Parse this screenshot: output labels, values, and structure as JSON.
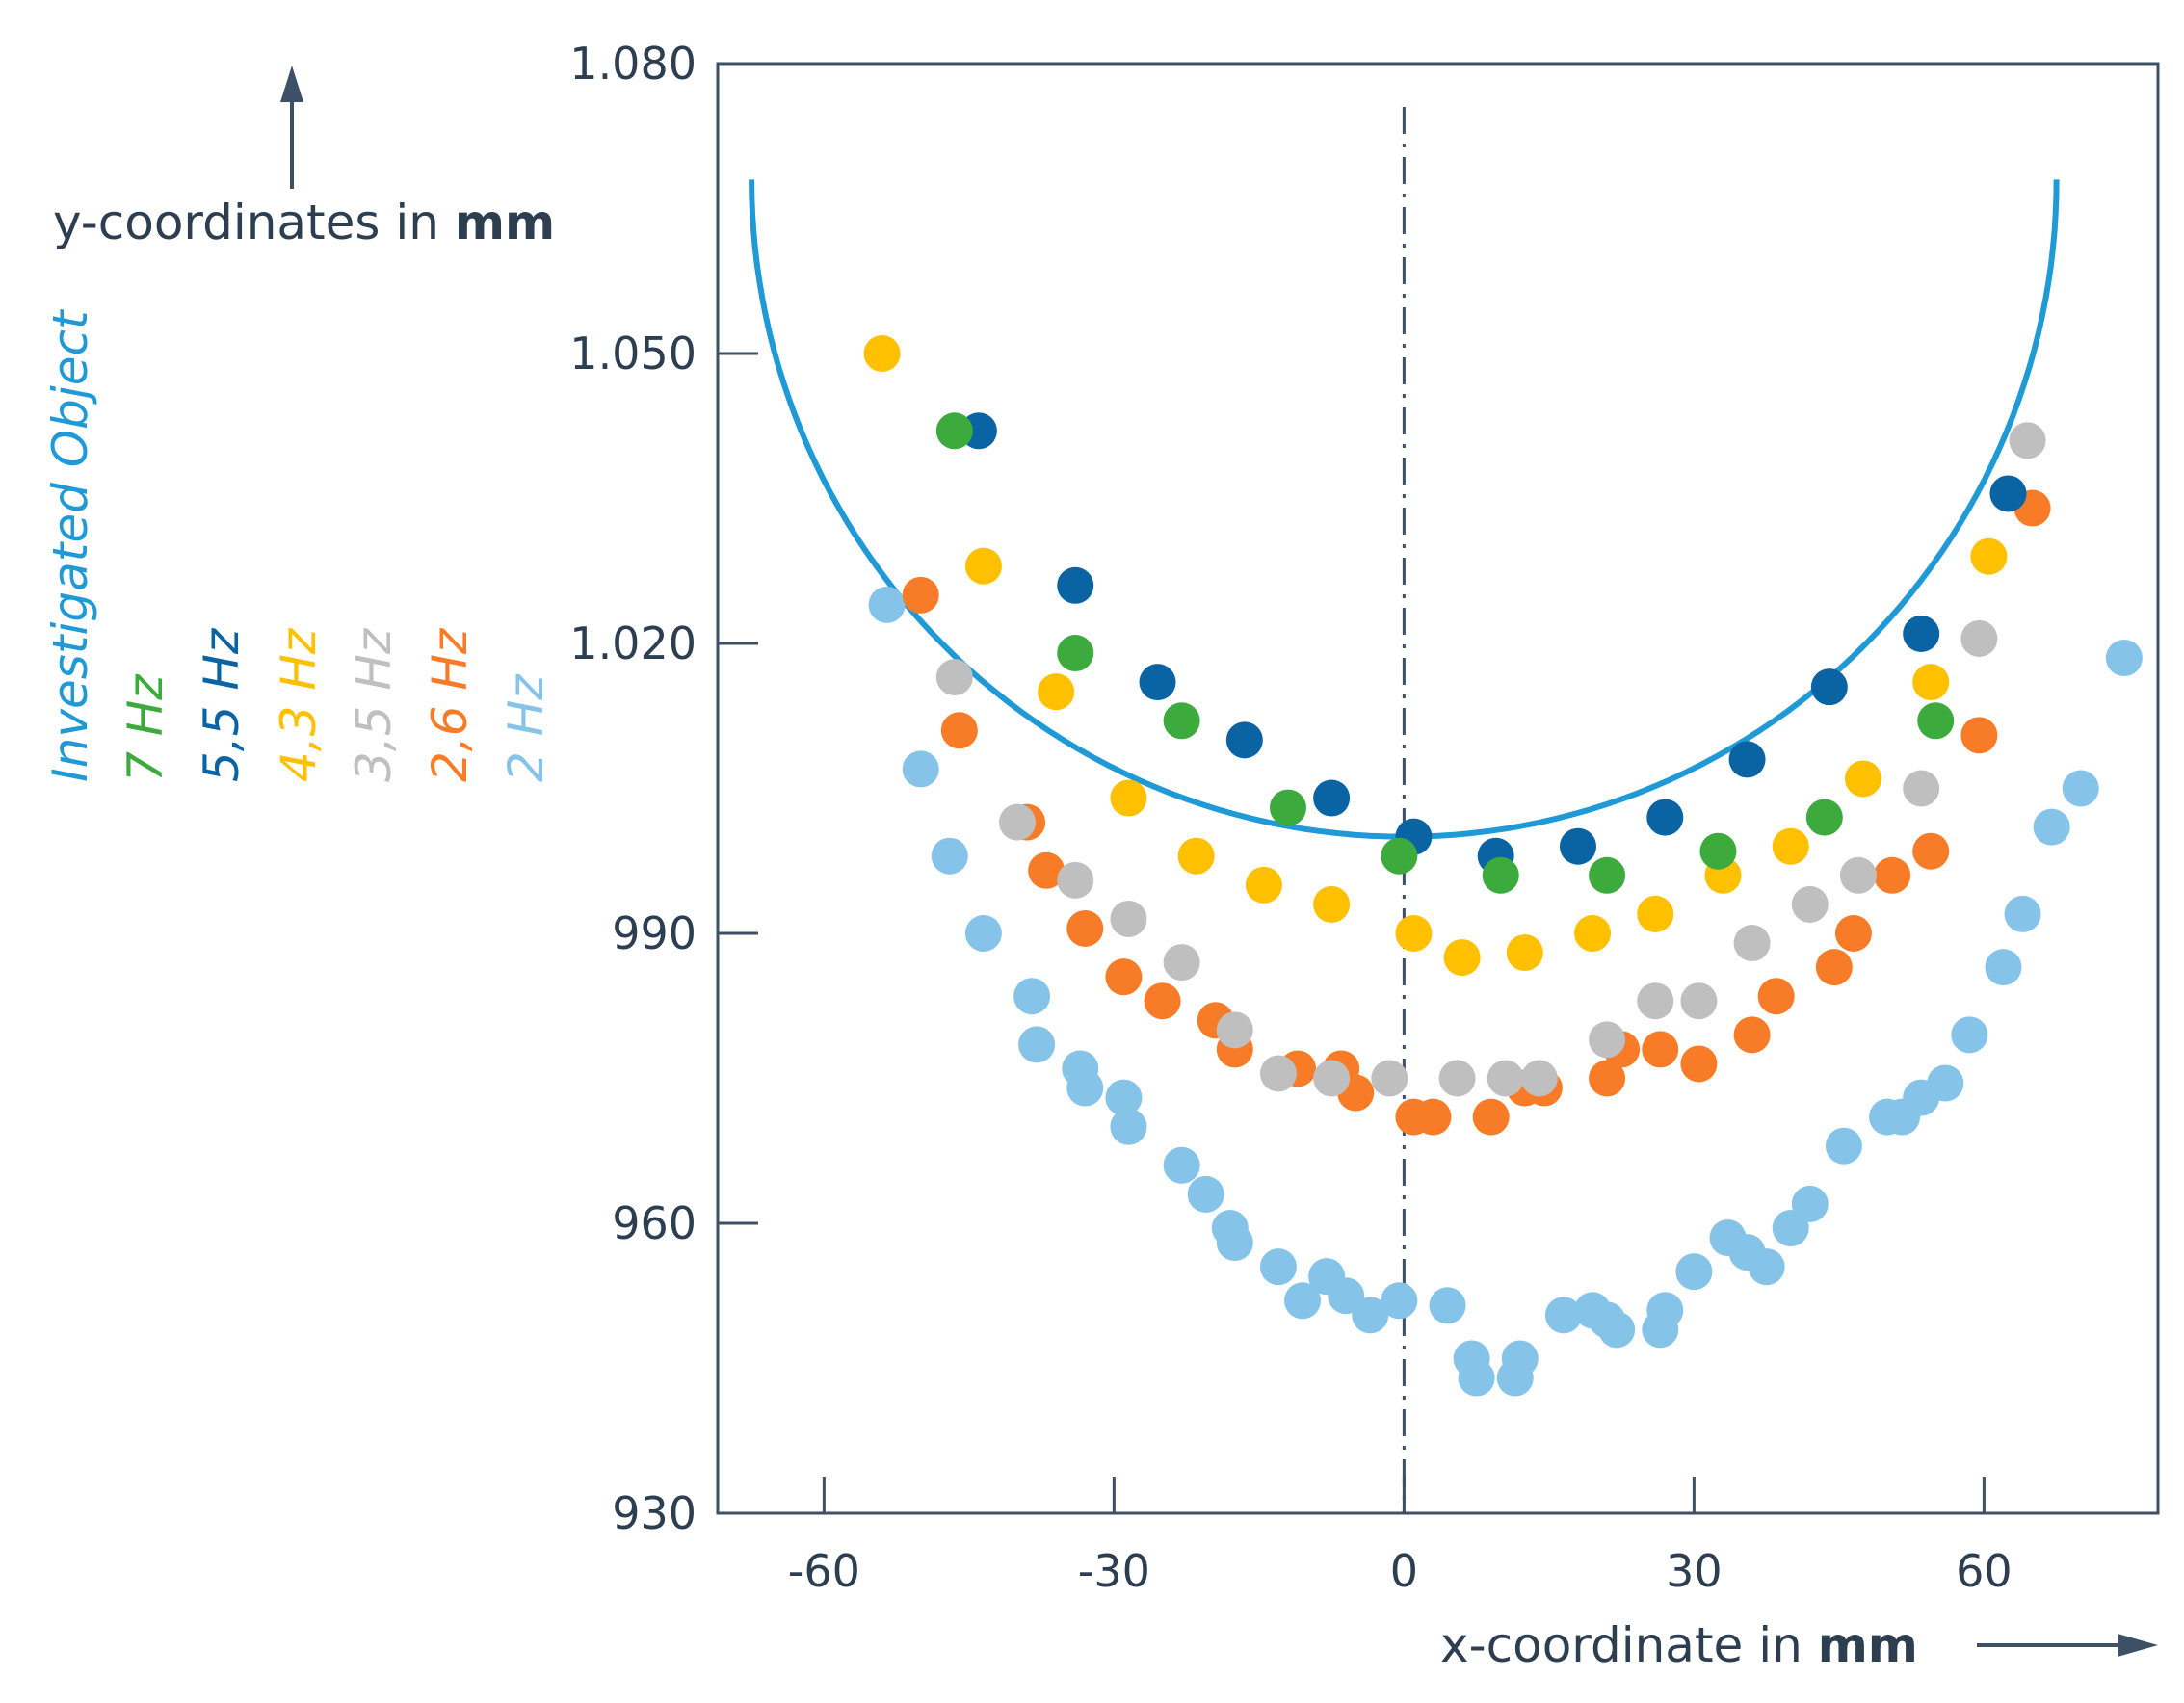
{
  "chart_data": {
    "type": "scatter",
    "title": "",
    "xlabel": {
      "text": "x-coordinate in ",
      "unit": "mm"
    },
    "ylabel": {
      "text": "y-coordinates in ",
      "unit": "mm"
    },
    "xlim": [
      -71,
      78
    ],
    "ylim": [
      930,
      1080
    ],
    "x_ticks": [
      {
        "value": -60,
        "label": "-60"
      },
      {
        "value": -30,
        "label": "-30"
      },
      {
        "value": 0,
        "label": "0"
      },
      {
        "value": 30,
        "label": "30"
      },
      {
        "value": 60,
        "label": "60"
      }
    ],
    "y_ticks": [
      {
        "value": 930,
        "label": "930"
      },
      {
        "value": 960,
        "label": "960"
      },
      {
        "value": 990,
        "label": "990"
      },
      {
        "value": 1020,
        "label": "1.020"
      },
      {
        "value": 1050,
        "label": "1.050"
      },
      {
        "value": 1080,
        "label": "1.080"
      }
    ],
    "centerline_x": 0,
    "curve": {
      "name": "Investigated Object",
      "color": "#1f9ad6",
      "center_x": 0,
      "center_y": 1068,
      "radius_x": 67.5,
      "radius_y": 68
    },
    "series": [
      {
        "name": "7 Hz",
        "color": "#3daa3d",
        "points": [
          [
            -46.5,
            1042
          ],
          [
            -34,
            1019
          ],
          [
            -23,
            1012
          ],
          [
            -12,
            1003
          ],
          [
            -0.5,
            998
          ],
          [
            10,
            996
          ],
          [
            21,
            996
          ],
          [
            32.5,
            998.5
          ],
          [
            43.5,
            1002
          ],
          [
            55,
            1012
          ]
        ]
      },
      {
        "name": "5,5 Hz",
        "color": "#0a64a4",
        "points": [
          [
            -44,
            1042
          ],
          [
            -34,
            1026
          ],
          [
            -25.5,
            1016
          ],
          [
            -16.5,
            1010
          ],
          [
            -7.5,
            1004
          ],
          [
            1,
            1000
          ],
          [
            9.5,
            998
          ],
          [
            18,
            999
          ],
          [
            27,
            1002
          ],
          [
            35.5,
            1008
          ],
          [
            44,
            1015.5
          ],
          [
            53.5,
            1021
          ],
          [
            62.5,
            1035.5
          ]
        ]
      },
      {
        "name": "4,3 Hz",
        "color": "#ffc000",
        "points": [
          [
            -54,
            1050
          ],
          [
            -43.5,
            1028
          ],
          [
            -36,
            1015
          ],
          [
            -28.5,
            1004
          ],
          [
            -21.5,
            998
          ],
          [
            -14.5,
            995
          ],
          [
            -7.5,
            993
          ],
          [
            1,
            990
          ],
          [
            6,
            987.5
          ],
          [
            12.5,
            988
          ],
          [
            19.5,
            990
          ],
          [
            26,
            992
          ],
          [
            33,
            996
          ],
          [
            40,
            999
          ],
          [
            47.5,
            1006
          ],
          [
            54.5,
            1016
          ],
          [
            60.5,
            1029
          ]
        ]
      },
      {
        "name": "3,5 Hz",
        "color": "#bfbfbf",
        "points": [
          [
            -46.5,
            1016.5
          ],
          [
            -40,
            1001.5
          ],
          [
            -34,
            995.5
          ],
          [
            -28.5,
            991.5
          ],
          [
            -23,
            987
          ],
          [
            -17.5,
            980
          ],
          [
            -13,
            975.5
          ],
          [
            -7.5,
            975
          ],
          [
            -1.5,
            975
          ],
          [
            5.5,
            975
          ],
          [
            10.5,
            975
          ],
          [
            14,
            975
          ],
          [
            21,
            979
          ],
          [
            26,
            983
          ],
          [
            30.5,
            983
          ],
          [
            36,
            989
          ],
          [
            42,
            993
          ],
          [
            47,
            996
          ],
          [
            53.5,
            1005
          ],
          [
            59.5,
            1020.5
          ],
          [
            64.5,
            1041
          ]
        ]
      },
      {
        "name": "2,6 Hz",
        "color": "#f87c28",
        "points": [
          [
            -50,
            1025
          ],
          [
            -46,
            1011
          ],
          [
            -39,
            1001.5
          ],
          [
            -37,
            996.5
          ],
          [
            -33,
            990.5
          ],
          [
            -29,
            985.5
          ],
          [
            -25,
            983
          ],
          [
            -19.5,
            981
          ],
          [
            -17.5,
            978
          ],
          [
            -11,
            976
          ],
          [
            -6.5,
            976
          ],
          [
            -5,
            973.5
          ],
          [
            1,
            971
          ],
          [
            3,
            971
          ],
          [
            9,
            971
          ],
          [
            12.5,
            974
          ],
          [
            14.5,
            974
          ],
          [
            21,
            975
          ],
          [
            22.5,
            978
          ],
          [
            26.5,
            978
          ],
          [
            30.5,
            976.5
          ],
          [
            36,
            979.5
          ],
          [
            38.5,
            983.5
          ],
          [
            44.5,
            986.5
          ],
          [
            46.5,
            990
          ],
          [
            50.5,
            996
          ],
          [
            54.5,
            998.5
          ],
          [
            59.5,
            1010.5
          ],
          [
            65,
            1034
          ]
        ]
      },
      {
        "name": "2 Hz",
        "color": "#85c4e8",
        "points": [
          [
            -53.5,
            1024
          ],
          [
            -50,
            1007
          ],
          [
            -47,
            998
          ],
          [
            -43.5,
            990
          ],
          [
            -38.5,
            983.5
          ],
          [
            -38,
            978.5
          ],
          [
            -33.5,
            976
          ],
          [
            -33,
            974
          ],
          [
            -29,
            973
          ],
          [
            -28.5,
            970
          ],
          [
            -23,
            966
          ],
          [
            -20.5,
            963
          ],
          [
            -18,
            959.5
          ],
          [
            -17.5,
            958
          ],
          [
            -13,
            955.5
          ],
          [
            -10.5,
            952
          ],
          [
            -8,
            954.5
          ],
          [
            -6,
            952.5
          ],
          [
            -3.5,
            950.5
          ],
          [
            -0.5,
            952
          ],
          [
            4.5,
            951.5
          ],
          [
            7,
            946
          ],
          [
            7.5,
            944
          ],
          [
            11.5,
            944
          ],
          [
            12,
            946
          ],
          [
            16.5,
            950.5
          ],
          [
            19.5,
            951
          ],
          [
            21,
            950
          ],
          [
            22,
            949
          ],
          [
            26.5,
            949
          ],
          [
            27,
            951
          ],
          [
            30,
            955
          ],
          [
            33.5,
            958.5
          ],
          [
            35.5,
            957
          ],
          [
            37.5,
            955.5
          ],
          [
            40,
            959.5
          ],
          [
            42,
            962
          ],
          [
            45.5,
            968
          ],
          [
            50,
            971
          ],
          [
            51.5,
            971
          ],
          [
            53.5,
            973
          ],
          [
            56,
            974.5
          ],
          [
            58.5,
            979.5
          ],
          [
            62,
            986.5
          ],
          [
            64,
            992
          ],
          [
            67,
            1001
          ],
          [
            70,
            1005
          ],
          [
            74.5,
            1018.5
          ]
        ]
      }
    ],
    "legend": {
      "placement": "left, rotated vertical",
      "entries": [
        {
          "label": "Investigated Object",
          "color": "#1f9ad6"
        },
        {
          "label": "7 Hz",
          "color": "#3daa3d"
        },
        {
          "label": "5,5 Hz",
          "color": "#0a64a4"
        },
        {
          "label": "4,3 Hz",
          "color": "#ffc000"
        },
        {
          "label": "3,5 Hz",
          "color": "#bfbfbf"
        },
        {
          "label": "2,6 Hz",
          "color": "#f87c28"
        },
        {
          "label": "2 Hz",
          "color": "#85c4e8"
        }
      ]
    }
  },
  "colors": {
    "axis": "#3d5066",
    "text": "#2c3e50"
  }
}
